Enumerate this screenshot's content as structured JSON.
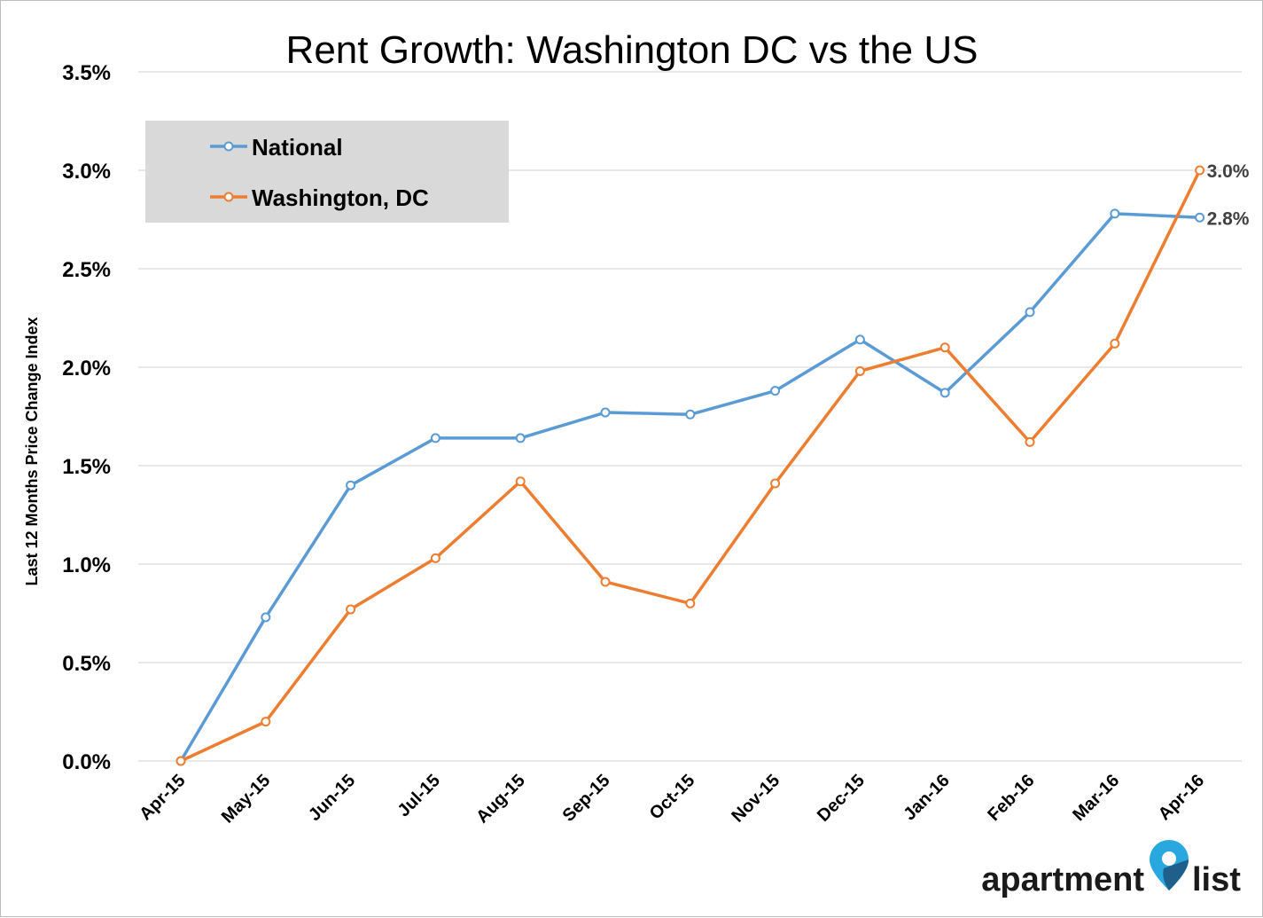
{
  "chart_data": {
    "type": "line",
    "title": "Rent Growth: Washington DC vs the US",
    "xlabel": "",
    "ylabel": "Last 12 Months Price Change Index",
    "categories": [
      "Apr-15",
      "May-15",
      "Jun-15",
      "Jul-15",
      "Aug-15",
      "Sep-15",
      "Oct-15",
      "Nov-15",
      "Dec-15",
      "Jan-16",
      "Feb-16",
      "Mar-16",
      "Apr-16"
    ],
    "yticks": [
      "0.0%",
      "0.5%",
      "1.0%",
      "1.5%",
      "2.0%",
      "2.5%",
      "3.0%",
      "3.5%"
    ],
    "ylim": [
      0,
      3.5
    ],
    "grid": true,
    "legend_position": "top-left",
    "series": [
      {
        "name": "National",
        "color": "#5b9bd5",
        "values": [
          0.0,
          0.73,
          1.4,
          1.64,
          1.64,
          1.77,
          1.76,
          1.88,
          2.14,
          1.87,
          2.28,
          2.78,
          2.76
        ],
        "end_label": "2.8%"
      },
      {
        "name": "Washington, DC",
        "color": "#ed7d31",
        "values": [
          0.0,
          0.2,
          0.77,
          1.03,
          1.42,
          0.91,
          0.8,
          1.41,
          1.98,
          2.1,
          1.62,
          2.12,
          3.0
        ],
        "end_label": "3.0%"
      }
    ]
  },
  "logo": {
    "text_left": "apartment",
    "text_right": "list",
    "pin_color": "#29a8e0",
    "pin_dark_color": "#1f5f8b"
  }
}
